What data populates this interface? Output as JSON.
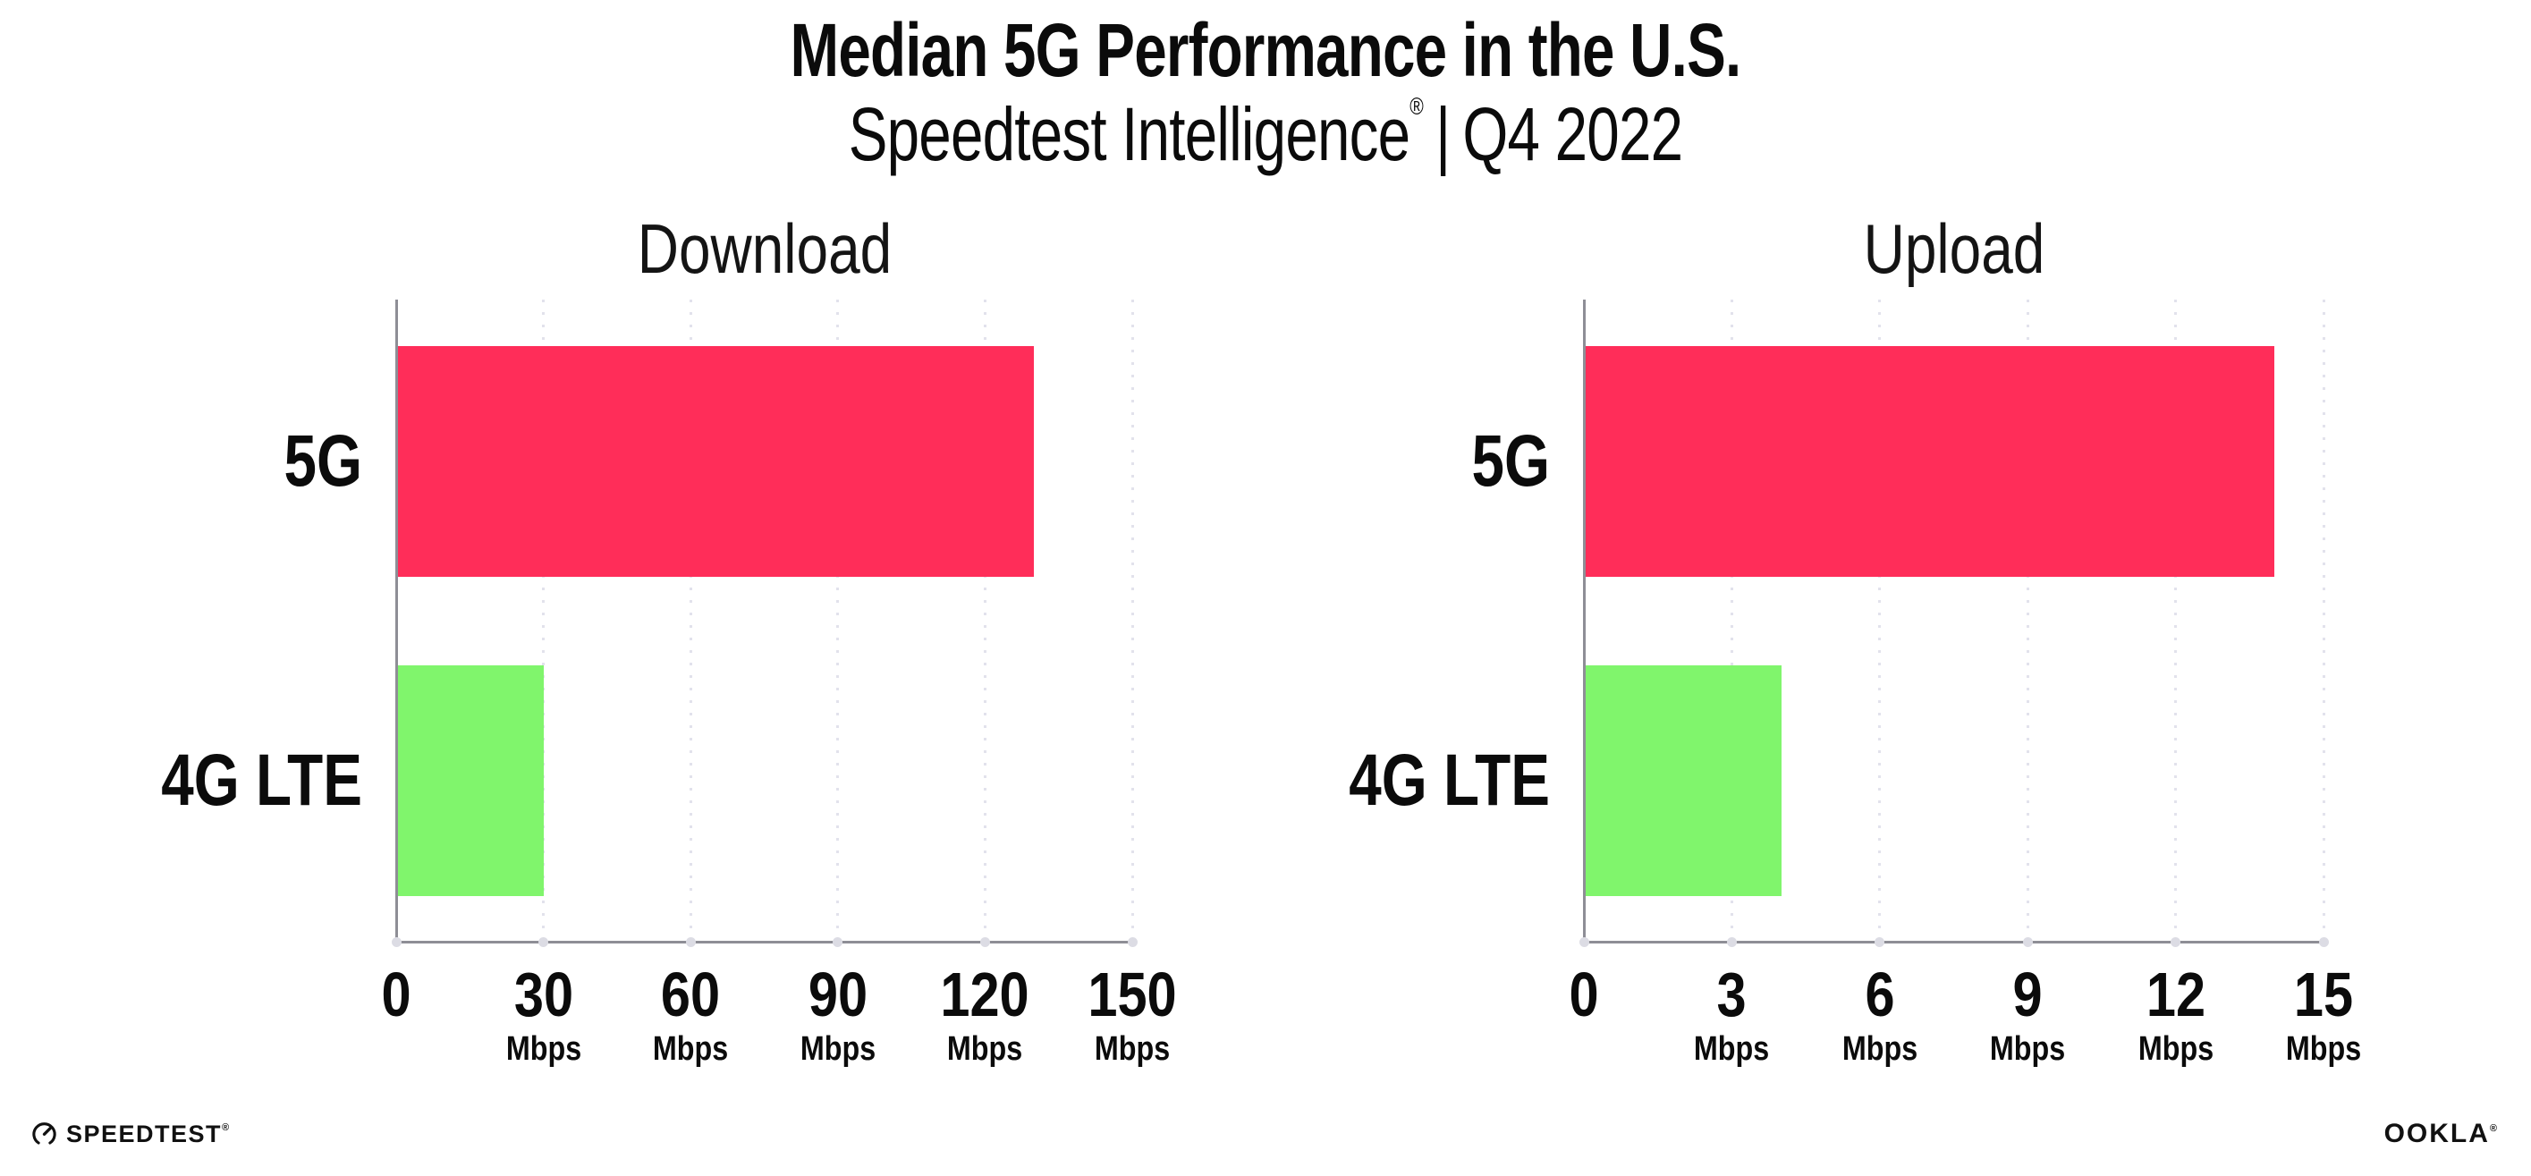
{
  "header": {
    "title": "Median 5G Performance in the U.S.",
    "subtitle_brand": "Speedtest Intelligence",
    "subtitle_reg_mark": "®",
    "subtitle_separator": "|",
    "subtitle_period": "Q4 2022"
  },
  "chart_data": [
    {
      "type": "bar",
      "orientation": "horizontal",
      "title": "Download",
      "categories": [
        "5G",
        "4G LTE"
      ],
      "values": [
        130,
        30
      ],
      "unit": "Mbps",
      "xlim": [
        0,
        150
      ],
      "ticks": [
        0,
        30,
        60,
        90,
        120,
        150
      ],
      "bar_colors": [
        "#FF2D59",
        "#80F56C"
      ],
      "grid": "vertical-dotted",
      "legend": "none"
    },
    {
      "type": "bar",
      "orientation": "horizontal",
      "title": "Upload",
      "categories": [
        "5G",
        "4G LTE"
      ],
      "values": [
        14,
        4
      ],
      "unit": "Mbps",
      "xlim": [
        0,
        15
      ],
      "ticks": [
        0,
        3,
        6,
        9,
        12,
        15
      ],
      "bar_colors": [
        "#FF2D59",
        "#80F56C"
      ],
      "grid": "vertical-dotted",
      "legend": "none"
    }
  ],
  "footer": {
    "speedtest_logo_text": "SPEEDTEST",
    "speedtest_trademark": "®",
    "ookla_logo_text": "OOKLA",
    "ookla_trademark": "®"
  },
  "colors": {
    "background": "#FFFFFF",
    "text": "#0B0B0B",
    "axis_line": "#8E8E96",
    "gridline_dots": "#E2E2EC",
    "tick_dots": "#DCDCE4",
    "bar_5g": "#FF2D59",
    "bar_4g_lte": "#80F56C"
  }
}
